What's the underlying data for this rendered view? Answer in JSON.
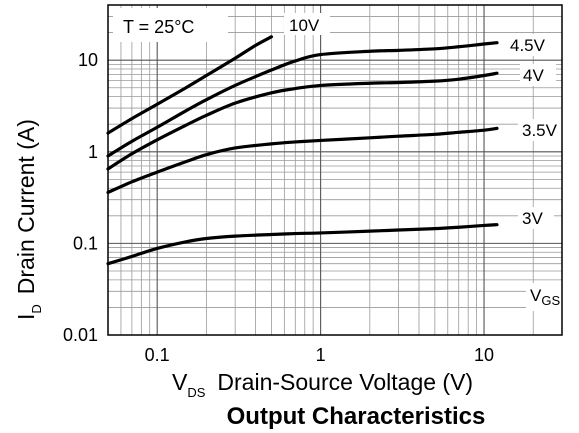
{
  "chart_data": {
    "type": "line",
    "title": "Output Characteristics",
    "xlabel": {
      "main": "V",
      "sub": "DS",
      "text": "Drain-Source Voltage (V)"
    },
    "ylabel": {
      "main": "I",
      "sub": "D",
      "text": "Drain Current (A)"
    },
    "x_scale": "log",
    "y_scale": "log",
    "xlim": [
      0.05,
      30
    ],
    "ylim": [
      0.01,
      40
    ],
    "x_ticks": [
      {
        "v": 0.1,
        "label": "0.1"
      },
      {
        "v": 1,
        "label": "1"
      },
      {
        "v": 10,
        "label": "10"
      }
    ],
    "y_ticks": [
      {
        "v": 0.01,
        "label": "0.01"
      },
      {
        "v": 0.1,
        "label": "0.1"
      },
      {
        "v": 1,
        "label": "1"
      },
      {
        "v": 10,
        "label": "10"
      }
    ],
    "grid": true,
    "annotation": "T = 25°C",
    "legend_label": {
      "main": "V",
      "sub": "GS"
    },
    "series": [
      {
        "name": "10V",
        "x": [
          0.05,
          0.07,
          0.1,
          0.15,
          0.2,
          0.3,
          0.4,
          0.5
        ],
        "y": [
          1.6,
          2.3,
          3.3,
          5.0,
          6.8,
          10.5,
          14.5,
          18.0
        ]
      },
      {
        "name": "4.5V",
        "x": [
          0.05,
          0.07,
          0.1,
          0.15,
          0.2,
          0.3,
          0.5,
          0.7,
          1,
          2,
          3,
          5,
          7,
          10,
          12
        ],
        "y": [
          0.9,
          1.3,
          1.85,
          2.8,
          3.7,
          5.3,
          7.8,
          9.8,
          11.5,
          12.5,
          12.8,
          13.3,
          14.0,
          15.0,
          15.5
        ]
      },
      {
        "name": "4V",
        "x": [
          0.05,
          0.07,
          0.1,
          0.15,
          0.2,
          0.3,
          0.5,
          0.7,
          1,
          2,
          3,
          5,
          7,
          10,
          12
        ],
        "y": [
          0.65,
          0.95,
          1.35,
          1.95,
          2.5,
          3.4,
          4.4,
          4.9,
          5.3,
          5.6,
          5.7,
          5.9,
          6.2,
          6.8,
          7.2
        ]
      },
      {
        "name": "3.5V",
        "x": [
          0.05,
          0.07,
          0.1,
          0.15,
          0.2,
          0.3,
          0.5,
          0.7,
          1,
          2,
          3,
          5,
          7,
          10,
          12
        ],
        "y": [
          0.36,
          0.47,
          0.6,
          0.78,
          0.93,
          1.1,
          1.22,
          1.28,
          1.33,
          1.42,
          1.48,
          1.55,
          1.63,
          1.72,
          1.8
        ]
      },
      {
        "name": "3V",
        "x": [
          0.05,
          0.07,
          0.1,
          0.15,
          0.2,
          0.3,
          0.5,
          0.7,
          1,
          2,
          3,
          5,
          7,
          10,
          12
        ],
        "y": [
          0.06,
          0.072,
          0.088,
          0.104,
          0.113,
          0.12,
          0.125,
          0.128,
          0.13,
          0.136,
          0.14,
          0.145,
          0.15,
          0.157,
          0.16
        ]
      }
    ]
  }
}
